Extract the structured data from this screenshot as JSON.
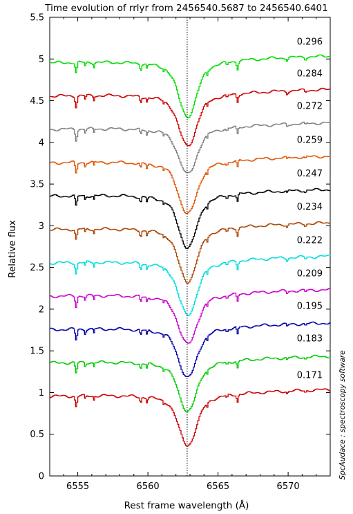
{
  "chart_data": {
    "type": "line",
    "title": "Time evolution of rrlyr from 2456540.5687 to 2456540.6401",
    "xlabel": "Rest frame wavelength (Å)",
    "ylabel": "Relative flux",
    "credit": "SpcAudace : spectroscopy software",
    "xlim": [
      6553,
      6573
    ],
    "ylim": [
      0,
      5.5
    ],
    "x_ticks": [
      6555,
      6560,
      6565,
      6570
    ],
    "x_tick_labels": [
      "6555",
      "6560",
      "6565",
      "6570"
    ],
    "y_ticks": [
      0,
      0.5,
      1,
      1.5,
      2,
      2.5,
      3,
      3.5,
      4,
      4.5,
      5,
      5.5
    ],
    "y_tick_labels": [
      "0",
      "0.5",
      "1",
      "1.5",
      "2",
      "2.5",
      "3",
      "3.5",
      "4",
      "4.5",
      "5",
      "5.5"
    ],
    "reference_line_x": 6562.8,
    "grid": false,
    "series": [
      {
        "name": "0.171",
        "color": "#cc0000",
        "offset": 1.0,
        "depth": 0.63
      },
      {
        "name": "0.183",
        "color": "#00cc00",
        "offset": 1.4,
        "depth": 0.62
      },
      {
        "name": "0.195",
        "color": "#0000aa",
        "offset": 1.8,
        "depth": 0.62
      },
      {
        "name": "0.209",
        "color": "#cc00cc",
        "offset": 2.2,
        "depth": 0.62
      },
      {
        "name": "0.222",
        "color": "#00dddd",
        "offset": 2.6,
        "depth": 0.67
      },
      {
        "name": "0.234",
        "color": "#aa4400",
        "offset": 3.0,
        "depth": 0.67
      },
      {
        "name": "0.247",
        "color": "#000000",
        "offset": 3.4,
        "depth": 0.66
      },
      {
        "name": "0.259",
        "color": "#e05500",
        "offset": 3.8,
        "depth": 0.66
      },
      {
        "name": "0.272",
        "color": "#808080",
        "offset": 4.2,
        "depth": 0.58
      },
      {
        "name": "0.284",
        "color": "#cc0000",
        "offset": 4.6,
        "depth": 0.64
      },
      {
        "name": "0.296",
        "color": "#00dd00",
        "offset": 5.0,
        "depth": 0.69
      }
    ],
    "phase_labels": [
      {
        "text": "0.171",
        "y": 1.21
      },
      {
        "text": "0.183",
        "y": 1.65
      },
      {
        "text": "0.195",
        "y": 2.04
      },
      {
        "text": "0.209",
        "y": 2.43
      },
      {
        "text": "0.222",
        "y": 2.83
      },
      {
        "text": "0.234",
        "y": 3.23
      },
      {
        "text": "0.247",
        "y": 3.63
      },
      {
        "text": "0.259",
        "y": 4.03
      },
      {
        "text": "0.272",
        "y": 4.44
      },
      {
        "text": "0.284",
        "y": 4.83
      },
      {
        "text": "0.296",
        "y": 5.21
      }
    ]
  }
}
